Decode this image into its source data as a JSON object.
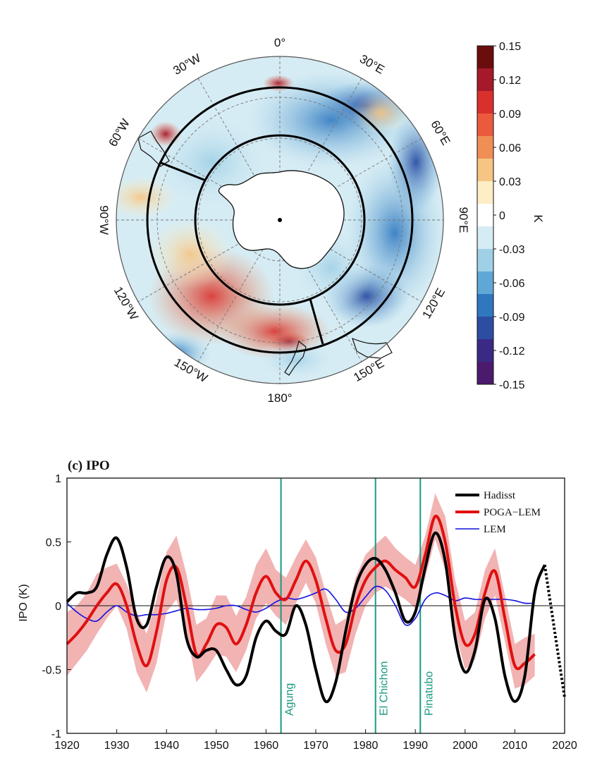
{
  "map": {
    "longitude_labels": [
      "0°",
      "30°E",
      "60°E",
      "90°E",
      "120°E",
      "150°E",
      "180°",
      "150°W",
      "120°W",
      "90°W",
      "60°W",
      "30°W"
    ],
    "colorbar": {
      "unit": "K",
      "ticks": [
        "0.15",
        "0.12",
        "0.09",
        "0.06",
        "0.03",
        "0",
        "-0.03",
        "-0.06",
        "-0.09",
        "-0.12",
        "-0.15"
      ],
      "colors": [
        "#6b0d0d",
        "#a6192b",
        "#d9302c",
        "#ec5a3e",
        "#f08f55",
        "#f6c583",
        "#fdeec6",
        "#ffffff",
        "#d6ecf4",
        "#9fd0e6",
        "#5fa7d6",
        "#2f78c0",
        "#2c4ea2",
        "#3b2a85",
        "#4b1a6d"
      ]
    }
  },
  "chart_data": {
    "type": "line",
    "title": "(c)  IPO",
    "xlabel": "",
    "ylabel": "IPO (K)",
    "xlim": [
      1920,
      2020
    ],
    "ylim": [
      -1,
      1
    ],
    "xticks": [
      "1920",
      "1930",
      "1940",
      "1950",
      "1960",
      "1970",
      "1980",
      "1990",
      "2000",
      "2010",
      "2020"
    ],
    "yticks": [
      "1",
      "0.5",
      "0",
      "-0.5",
      "-1"
    ],
    "events": [
      {
        "name": "Agung",
        "year": 1963
      },
      {
        "name": "El Chichon",
        "year": 1982
      },
      {
        "name": "Pinatubo",
        "year": 1991
      }
    ],
    "series": [
      {
        "name": "Hadisst",
        "color": "#000000",
        "x": [
          1920,
          1922,
          1924,
          1926,
          1928,
          1930,
          1932,
          1934,
          1936,
          1938,
          1940,
          1942,
          1944,
          1946,
          1948,
          1950,
          1952,
          1954,
          1956,
          1958,
          1960,
          1962,
          1964,
          1966,
          1968,
          1970,
          1972,
          1974,
          1976,
          1978,
          1980,
          1982,
          1984,
          1986,
          1988,
          1990,
          1992,
          1994,
          1996,
          1998,
          2000,
          2002,
          2004,
          2006,
          2008,
          2010,
          2012,
          2014,
          2016
        ],
        "y": [
          0.03,
          0.1,
          0.1,
          0.15,
          0.4,
          0.53,
          0.3,
          -0.1,
          -0.15,
          0.15,
          0.38,
          0.25,
          -0.25,
          -0.4,
          -0.35,
          -0.35,
          -0.5,
          -0.62,
          -0.55,
          -0.25,
          -0.12,
          -0.2,
          -0.22,
          0.0,
          -0.15,
          -0.5,
          -0.75,
          -0.6,
          -0.2,
          0.15,
          0.32,
          0.37,
          0.28,
          0.1,
          -0.12,
          -0.05,
          0.3,
          0.57,
          0.35,
          -0.25,
          -0.52,
          -0.35,
          0.05,
          -0.1,
          -0.55,
          -0.75,
          -0.55,
          0.1,
          0.32
        ]
      },
      {
        "name": "POGA−LEM",
        "color": "#e01010",
        "x": [
          1920,
          1922,
          1924,
          1926,
          1928,
          1930,
          1932,
          1934,
          1936,
          1938,
          1940,
          1942,
          1944,
          1946,
          1948,
          1950,
          1952,
          1954,
          1956,
          1958,
          1960,
          1962,
          1964,
          1966,
          1968,
          1970,
          1972,
          1974,
          1976,
          1978,
          1980,
          1982,
          1984,
          1986,
          1988,
          1990,
          1992,
          1994,
          1996,
          1998,
          2000,
          2002,
          2004,
          2006,
          2008,
          2010,
          2012,
          2014
        ],
        "y": [
          -0.3,
          -0.22,
          -0.12,
          0.0,
          0.1,
          0.17,
          0.0,
          -0.3,
          -0.47,
          -0.2,
          0.2,
          0.3,
          0.0,
          -0.38,
          -0.3,
          -0.15,
          -0.17,
          -0.3,
          -0.15,
          0.1,
          0.23,
          0.1,
          0.05,
          0.2,
          0.35,
          0.2,
          -0.1,
          -0.35,
          -0.3,
          0.0,
          0.2,
          0.3,
          0.35,
          0.28,
          0.22,
          0.15,
          0.4,
          0.7,
          0.5,
          0.0,
          -0.3,
          -0.22,
          0.1,
          0.27,
          -0.1,
          -0.47,
          -0.45,
          -0.38
        ]
      },
      {
        "name": "LEM",
        "color": "#1010e0",
        "x": [
          1920,
          1922,
          1924,
          1926,
          1928,
          1930,
          1932,
          1934,
          1936,
          1938,
          1940,
          1942,
          1944,
          1946,
          1948,
          1950,
          1952,
          1954,
          1956,
          1958,
          1960,
          1962,
          1964,
          1966,
          1968,
          1970,
          1972,
          1974,
          1976,
          1978,
          1980,
          1982,
          1984,
          1986,
          1988,
          1990,
          1992,
          1994,
          1996,
          1998,
          2000,
          2002,
          2004,
          2006,
          2008,
          2010,
          2012,
          2014
        ],
        "y": [
          0.02,
          -0.05,
          -0.1,
          -0.12,
          -0.05,
          0.0,
          -0.05,
          -0.08,
          -0.07,
          -0.07,
          -0.06,
          -0.04,
          -0.02,
          -0.03,
          -0.03,
          -0.02,
          0.0,
          0.0,
          -0.03,
          -0.05,
          -0.02,
          0.03,
          0.06,
          0.05,
          0.07,
          0.1,
          0.13,
          0.05,
          -0.05,
          -0.02,
          0.07,
          0.15,
          0.12,
          0.0,
          -0.15,
          -0.1,
          0.05,
          0.1,
          0.08,
          0.04,
          0.06,
          0.05,
          0.05,
          0.05,
          0.05,
          0.04,
          0.02,
          0.02
        ]
      }
    ],
    "band": {
      "name": "POGA−LEM spread",
      "color": "#f2b3b3",
      "upper": [
        -0.05,
        0.0,
        0.1,
        0.25,
        0.3,
        0.33,
        0.17,
        -0.05,
        -0.22,
        0.05,
        0.42,
        0.55,
        0.25,
        -0.15,
        -0.1,
        0.08,
        0.08,
        -0.08,
        0.07,
        0.32,
        0.45,
        0.28,
        0.22,
        0.38,
        0.52,
        0.38,
        0.1,
        -0.15,
        -0.1,
        0.22,
        0.4,
        0.48,
        0.55,
        0.45,
        0.38,
        0.32,
        0.55,
        0.88,
        0.7,
        0.2,
        -0.12,
        -0.05,
        0.28,
        0.45,
        0.08,
        -0.3,
        -0.25,
        -0.22
      ],
      "lower": [
        -0.55,
        -0.45,
        -0.35,
        -0.22,
        -0.1,
        0.0,
        -0.18,
        -0.52,
        -0.68,
        -0.45,
        -0.05,
        0.05,
        -0.2,
        -0.6,
        -0.5,
        -0.38,
        -0.4,
        -0.52,
        -0.35,
        -0.1,
        0.02,
        -0.08,
        -0.15,
        0.02,
        0.18,
        0.02,
        -0.3,
        -0.55,
        -0.52,
        -0.22,
        0.0,
        0.1,
        0.15,
        0.1,
        0.05,
        -0.02,
        0.22,
        0.52,
        0.28,
        -0.2,
        -0.5,
        -0.42,
        -0.1,
        0.08,
        -0.28,
        -0.65,
        -0.62,
        -0.55
      ]
    },
    "legend": [
      "Hadisst",
      "POGA−LEM",
      "LEM"
    ]
  }
}
